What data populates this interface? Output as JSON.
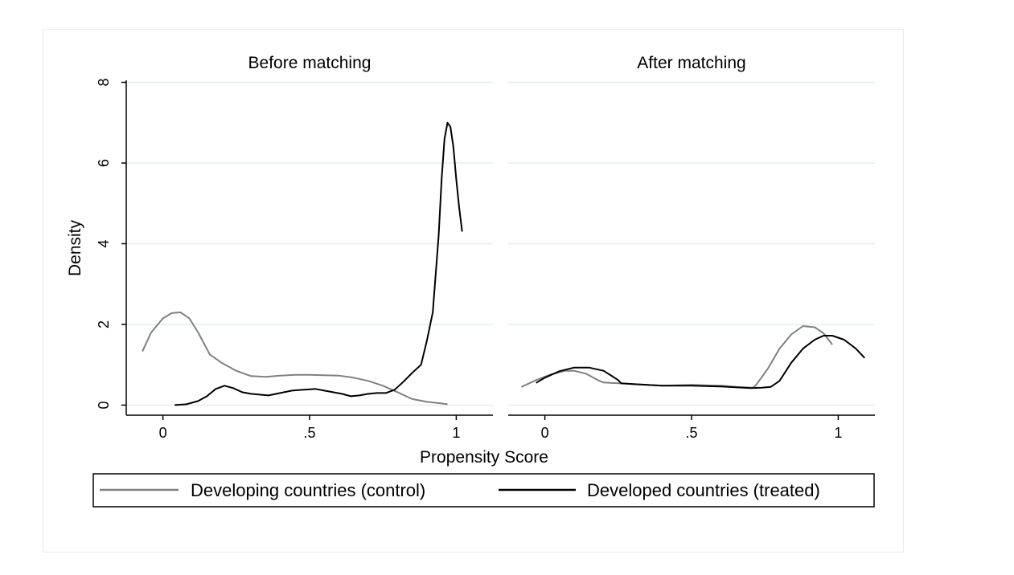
{
  "chart_data": [
    {
      "type": "line",
      "title": "Before matching",
      "xlabel": "Propensity Score",
      "ylabel": "Density",
      "xlim": [
        -0.125,
        1.125
      ],
      "ylim": [
        -0.25,
        8.05
      ],
      "xticks": [
        {
          "value": 0,
          "label": "0"
        },
        {
          "value": 0.5,
          "label": ".5"
        },
        {
          "value": 1,
          "label": "1"
        }
      ],
      "yticks": [
        {
          "value": 0,
          "label": "0"
        },
        {
          "value": 2,
          "label": "2"
        },
        {
          "value": 4,
          "label": "4"
        },
        {
          "value": 6,
          "label": "6"
        },
        {
          "value": 8,
          "label": "8"
        }
      ],
      "grid": true,
      "series": [
        {
          "name": "Developing countries (control)",
          "color": "#808080",
          "x": [
            -0.07,
            -0.04,
            0.0,
            0.03,
            0.06,
            0.09,
            0.12,
            0.16,
            0.2,
            0.25,
            0.3,
            0.35,
            0.4,
            0.45,
            0.5,
            0.55,
            0.6,
            0.65,
            0.7,
            0.75,
            0.8,
            0.85,
            0.9,
            0.95,
            0.97
          ],
          "y": [
            1.33,
            1.8,
            2.15,
            2.28,
            2.3,
            2.15,
            1.8,
            1.25,
            1.05,
            0.85,
            0.72,
            0.7,
            0.73,
            0.75,
            0.75,
            0.74,
            0.73,
            0.68,
            0.6,
            0.48,
            0.32,
            0.15,
            0.08,
            0.04,
            0.02
          ]
        },
        {
          "name": "Developed countries (treated)",
          "color": "#000000",
          "x": [
            0.04,
            0.08,
            0.12,
            0.15,
            0.18,
            0.21,
            0.24,
            0.27,
            0.3,
            0.33,
            0.36,
            0.4,
            0.44,
            0.48,
            0.52,
            0.55,
            0.58,
            0.61,
            0.64,
            0.67,
            0.7,
            0.73,
            0.76,
            0.79,
            0.82,
            0.85,
            0.88,
            0.9,
            0.92,
            0.94,
            0.95,
            0.96,
            0.97,
            0.98,
            0.99,
            1.0,
            1.01,
            1.02
          ],
          "y": [
            0.0,
            0.02,
            0.1,
            0.22,
            0.4,
            0.48,
            0.42,
            0.32,
            0.28,
            0.26,
            0.24,
            0.3,
            0.36,
            0.38,
            0.4,
            0.36,
            0.32,
            0.28,
            0.22,
            0.24,
            0.28,
            0.3,
            0.3,
            0.38,
            0.58,
            0.8,
            1.0,
            1.6,
            2.3,
            4.2,
            5.6,
            6.6,
            7.0,
            6.9,
            6.4,
            5.6,
            4.9,
            4.3
          ]
        }
      ]
    },
    {
      "type": "line",
      "title": "After matching",
      "xlabel": "Propensity Score",
      "ylabel": "",
      "xlim": [
        -0.125,
        1.125
      ],
      "ylim": [
        -0.25,
        8.05
      ],
      "xticks": [
        {
          "value": 0,
          "label": "0"
        },
        {
          "value": 0.5,
          "label": ".5"
        },
        {
          "value": 1,
          "label": "1"
        }
      ],
      "yticks": [],
      "grid": true,
      "series": [
        {
          "name": "Developing countries (control)",
          "color": "#808080",
          "x": [
            -0.08,
            -0.03,
            0.02,
            0.07,
            0.1,
            0.14,
            0.18,
            0.2,
            0.25,
            0.3,
            0.4,
            0.5,
            0.6,
            0.65,
            0.71,
            0.72,
            0.76,
            0.8,
            0.84,
            0.88,
            0.92,
            0.95,
            0.98
          ],
          "y": [
            0.45,
            0.62,
            0.76,
            0.85,
            0.85,
            0.78,
            0.62,
            0.56,
            0.54,
            0.52,
            0.48,
            0.5,
            0.48,
            0.45,
            0.43,
            0.5,
            0.9,
            1.4,
            1.75,
            1.96,
            1.93,
            1.78,
            1.5
          ]
        },
        {
          "name": "Developed countries (treated)",
          "color": "#000000",
          "x": [
            -0.03,
            0.0,
            0.05,
            0.1,
            0.15,
            0.2,
            0.25,
            0.26,
            0.3,
            0.4,
            0.5,
            0.6,
            0.7,
            0.74,
            0.77,
            0.8,
            0.84,
            0.88,
            0.92,
            0.95,
            0.98,
            1.02,
            1.06,
            1.09
          ],
          "y": [
            0.55,
            0.68,
            0.84,
            0.93,
            0.93,
            0.85,
            0.62,
            0.54,
            0.52,
            0.48,
            0.48,
            0.46,
            0.42,
            0.43,
            0.45,
            0.6,
            1.05,
            1.4,
            1.62,
            1.72,
            1.72,
            1.62,
            1.4,
            1.17
          ]
        }
      ]
    }
  ],
  "legend": {
    "placement": "bottom",
    "items": [
      {
        "label": "Developing countries (control)",
        "color": "#808080"
      },
      {
        "label": "Developed countries (treated)",
        "color": "#000000"
      }
    ]
  },
  "axis_title_x": "Propensity Score",
  "axis_title_y": "Density"
}
